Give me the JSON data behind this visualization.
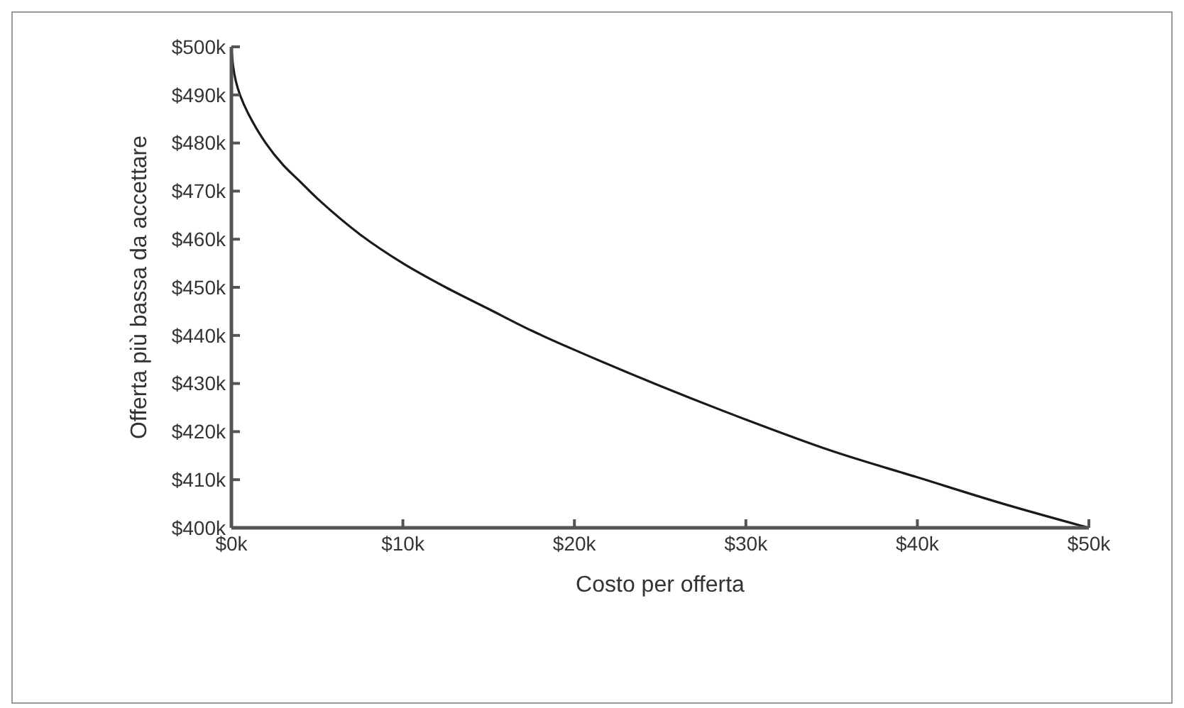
{
  "chart_data": {
    "type": "line",
    "xlabel": "Costo per offerta",
    "ylabel": "Offerta più bassa da accettare",
    "x": [
      0,
      0.1,
      0.25,
      0.5,
      1,
      2,
      3,
      4,
      5,
      7.5,
      10,
      12.5,
      15,
      17.5,
      20,
      25,
      30,
      35,
      40,
      45,
      50
    ],
    "series": [
      {
        "color": "#1a1a1a",
        "values": [
          500,
          496,
          493,
          490,
          486,
          480,
          475.5,
          472,
          468.5,
          461,
          455,
          450,
          445.5,
          441,
          437,
          429.5,
          422.5,
          416,
          410.5,
          405,
          400
        ]
      }
    ],
    "xlim": [
      0,
      50
    ],
    "ylim": [
      400,
      500
    ],
    "xticks": [
      {
        "value": 0,
        "label": "$0k"
      },
      {
        "value": 10,
        "label": "$10k"
      },
      {
        "value": 20,
        "label": "$20k"
      },
      {
        "value": 30,
        "label": "$30k"
      },
      {
        "value": 40,
        "label": "$40k"
      },
      {
        "value": 50,
        "label": "$50k"
      }
    ],
    "yticks": [
      {
        "value": 400,
        "label": "$400k"
      },
      {
        "value": 410,
        "label": "$410k"
      },
      {
        "value": 420,
        "label": "$420k"
      },
      {
        "value": 430,
        "label": "$430k"
      },
      {
        "value": 440,
        "label": "$440k"
      },
      {
        "value": 450,
        "label": "$450k"
      },
      {
        "value": 460,
        "label": "$460k"
      },
      {
        "value": 470,
        "label": "$470k"
      },
      {
        "value": 480,
        "label": "$480k"
      },
      {
        "value": 490,
        "label": "$490k"
      },
      {
        "value": 500,
        "label": "$500k"
      }
    ],
    "grid": false,
    "marker": "none",
    "line_style": "solid"
  }
}
